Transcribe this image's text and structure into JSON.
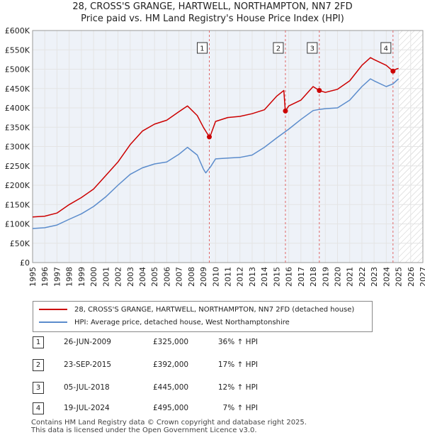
{
  "title_line1": "28, CROSS'S GRANGE, HARTWELL, NORTHAMPTON, NN7 2FD",
  "title_line2": "Price paid vs. HM Land Registry's House Price Index (HPI)",
  "colors": {
    "property": "#cc0000",
    "hpi": "#5b8ccc",
    "marker": "#cc0000",
    "grid": "#e4e4e4",
    "plot_bg": "#eef2f8"
  },
  "legend": {
    "property_label": "28, CROSS'S GRANGE, HARTWELL, NORTHAMPTON, NN7 2FD (detached house)",
    "hpi_label": "HPI: Average price, detached house, West Northamptonshire"
  },
  "sales": [
    {
      "num": "1",
      "date": "26-JUN-2009",
      "price": "£325,000",
      "hpi": "36% ↑ HPI"
    },
    {
      "num": "2",
      "date": "23-SEP-2015",
      "price": "£392,000",
      "hpi": "17% ↑ HPI"
    },
    {
      "num": "3",
      "date": "05-JUL-2018",
      "price": "£445,000",
      "hpi": "12% ↑ HPI"
    },
    {
      "num": "4",
      "date": "19-JUL-2024",
      "price": "£495,000",
      "hpi": "7% ↑ HPI"
    }
  ],
  "footer_line1": "Contains HM Land Registry data © Crown copyright and database right 2025.",
  "footer_line2": "This data is licensed under the Open Government Licence v3.0.",
  "chart_data": {
    "type": "line",
    "title": "Price paid vs. HM Land Registry's House Price Index (HPI)",
    "xlim": [
      1995,
      2027
    ],
    "ylim": [
      0,
      600000
    ],
    "x_ticks": [
      1995,
      1996,
      1997,
      1998,
      1999,
      2000,
      2001,
      2002,
      2003,
      2004,
      2005,
      2006,
      2007,
      2008,
      2009,
      2010,
      2011,
      2012,
      2013,
      2014,
      2015,
      2016,
      2017,
      2018,
      2019,
      2020,
      2021,
      2022,
      2023,
      2024,
      2025,
      2026,
      2027
    ],
    "y_ticks": [
      {
        "value": 0,
        "label": "£0"
      },
      {
        "value": 50000,
        "label": "£50K"
      },
      {
        "value": 100000,
        "label": "£100K"
      },
      {
        "value": 150000,
        "label": "£150K"
      },
      {
        "value": 200000,
        "label": "£200K"
      },
      {
        "value": 250000,
        "label": "£250K"
      },
      {
        "value": 300000,
        "label": "£300K"
      },
      {
        "value": 350000,
        "label": "£350K"
      },
      {
        "value": 400000,
        "label": "£400K"
      },
      {
        "value": 450000,
        "label": "£450K"
      },
      {
        "value": 500000,
        "label": "£500K"
      },
      {
        "value": 550000,
        "label": "£550K"
      },
      {
        "value": 600000,
        "label": "£600K"
      }
    ],
    "projection_start": 2025.0,
    "series": [
      {
        "name": "28, CROSS'S GRANGE, HARTWELL, NORTHAMPTON, NN7 2FD (detached house)",
        "x": [
          1995,
          1996,
          1997,
          1998,
          1999,
          2000,
          2001,
          2002,
          2003,
          2004,
          2005,
          2006,
          2007,
          2007.7,
          2008.5,
          2009,
          2009.49,
          2009.6,
          2010,
          2011,
          2012,
          2013,
          2014,
          2015,
          2015.6,
          2015.72,
          2015.8,
          2016,
          2017,
          2018,
          2018.51,
          2019,
          2020,
          2021,
          2022,
          2022.7,
          2023,
          2024,
          2024.55,
          2024.8,
          2025
        ],
        "values": [
          118000,
          120000,
          128000,
          150000,
          168000,
          190000,
          225000,
          260000,
          305000,
          340000,
          358000,
          368000,
          390000,
          405000,
          380000,
          350000,
          325000,
          330000,
          365000,
          375000,
          378000,
          385000,
          395000,
          430000,
          445000,
          392000,
          395000,
          405000,
          420000,
          455000,
          445000,
          440000,
          448000,
          470000,
          510000,
          530000,
          525000,
          510000,
          495000,
          500000,
          502000
        ]
      },
      {
        "name": "HPI: Average price, detached house, West Northamptonshire",
        "x": [
          1995,
          1996,
          1997,
          1998,
          1999,
          2000,
          2001,
          2002,
          2003,
          2004,
          2005,
          2006,
          2007,
          2007.7,
          2008.5,
          2009,
          2009.2,
          2009.6,
          2010,
          2011,
          2012,
          2013,
          2014,
          2015,
          2016,
          2017,
          2018,
          2018.5,
          2019,
          2020,
          2021,
          2022,
          2022.7,
          2023,
          2024,
          2024.55,
          2025
        ],
        "values": [
          88000,
          90000,
          97000,
          112000,
          126000,
          145000,
          170000,
          200000,
          228000,
          245000,
          255000,
          260000,
          280000,
          298000,
          278000,
          242000,
          232000,
          248000,
          268000,
          270000,
          272000,
          278000,
          298000,
          322000,
          345000,
          370000,
          393000,
          396000,
          398000,
          400000,
          420000,
          455000,
          475000,
          470000,
          455000,
          462000,
          475000
        ]
      }
    ],
    "annotations": [
      {
        "label": "1",
        "x": 2009.49,
        "value": 325000
      },
      {
        "label": "2",
        "x": 2015.73,
        "value": 392000
      },
      {
        "label": "3",
        "x": 2018.51,
        "value": 445000
      },
      {
        "label": "4",
        "x": 2024.55,
        "value": 495000
      }
    ]
  }
}
